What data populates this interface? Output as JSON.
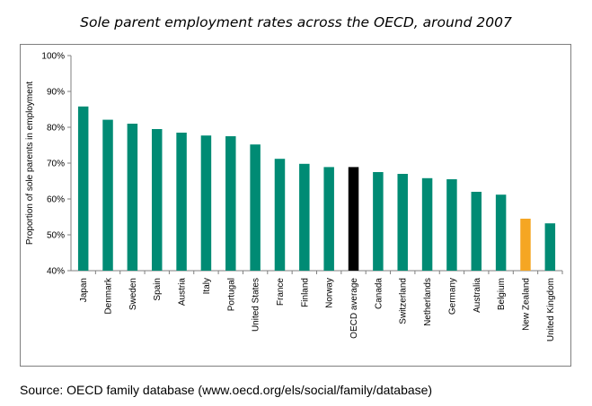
{
  "chart_data": {
    "type": "bar",
    "title": "Sole parent employment rates across the OECD, around 2007",
    "xlabel": "",
    "ylabel": "Proportion of sole parents in employment",
    "ylim": [
      40,
      100
    ],
    "yticks": [
      40,
      50,
      60,
      70,
      80,
      90,
      100
    ],
    "ytick_labels": [
      "40%",
      "50%",
      "60%",
      "70%",
      "80%",
      "90%",
      "100%"
    ],
    "grid": false,
    "categories": [
      "Japan",
      "Denmark",
      "Sweden",
      "Spain",
      "Austria",
      "Italy",
      "Portugal",
      "United States",
      "France",
      "Finland",
      "Norway",
      "OECD average",
      "Canada",
      "Switzerland",
      "Netherlands",
      "Germany",
      "Australia",
      "Belgium",
      "New Zealand",
      "United Kingdom"
    ],
    "values": [
      85.8,
      82.1,
      81.0,
      79.5,
      78.5,
      77.7,
      77.5,
      75.2,
      71.2,
      69.8,
      68.9,
      68.9,
      67.5,
      67.0,
      65.8,
      65.5,
      62.0,
      61.2,
      54.5,
      53.2
    ],
    "colors": {
      "default": "#008b74",
      "OECD average": "#000000",
      "New Zealand": "#f5a623"
    }
  },
  "source": "Source: OECD family database (www.oecd.org/els/social/family/database)"
}
